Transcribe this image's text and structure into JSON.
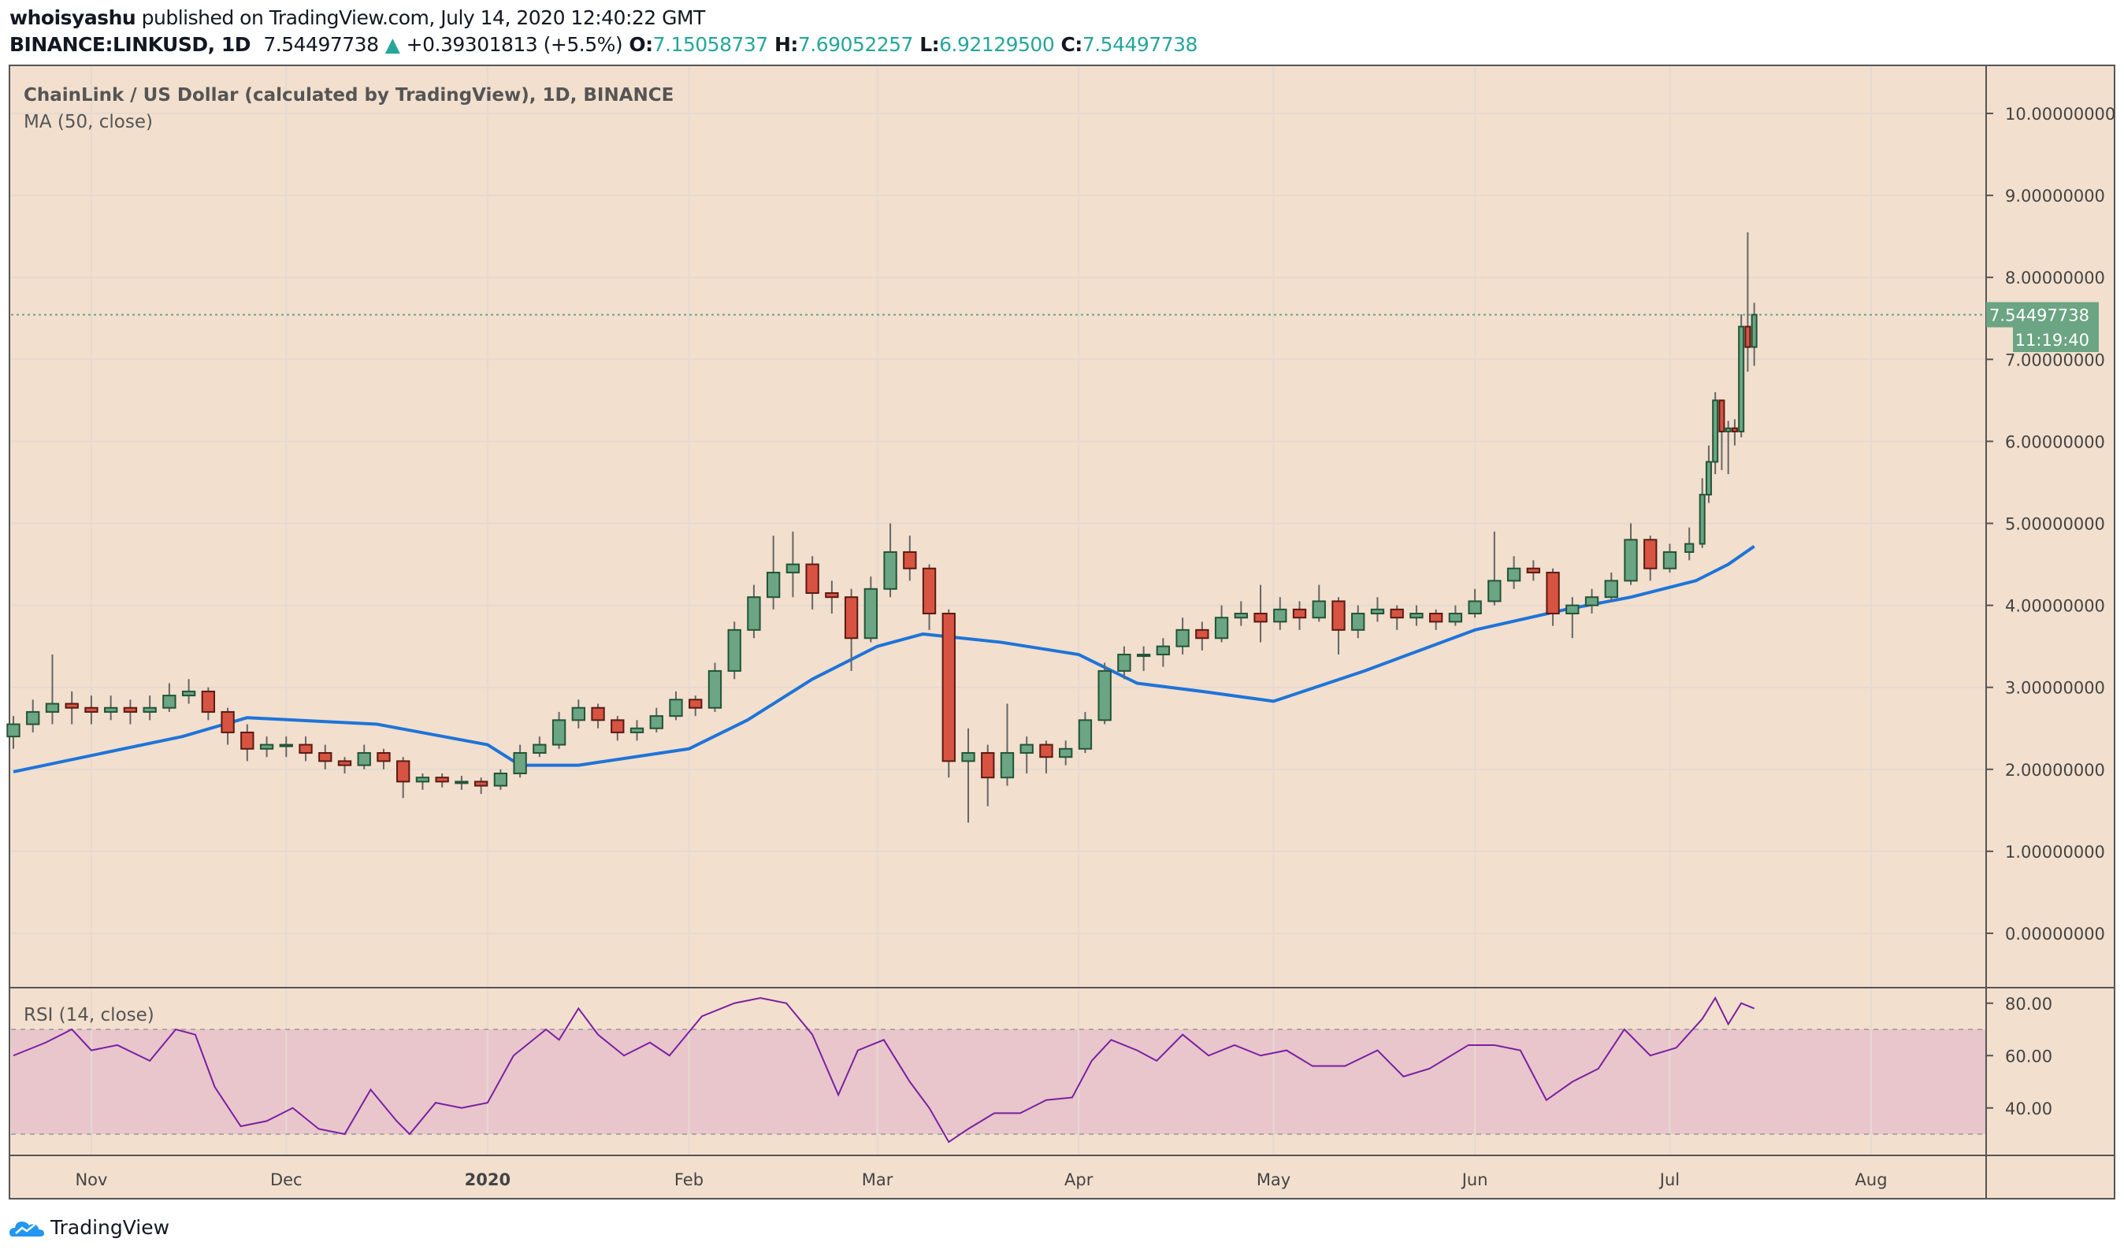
{
  "header": {
    "author": "whoisyashu",
    "published": "published on TradingView.com, July 14, 2020 12:40:22 GMT",
    "symbol": "BINANCE:LINKUSD, 1D",
    "last": "7.54497738",
    "change": "+0.39301813 (+5.5%)",
    "o_label": "O:",
    "o": "7.15058737",
    "h_label": "H:",
    "h": "7.69052257",
    "l_label": "L:",
    "l": "6.92129500",
    "c_label": "C:",
    "c": "7.54497738"
  },
  "footer": {
    "brand": "TradingView"
  },
  "colors": {
    "bg": "#f2dfce",
    "up": "#6ba583",
    "up_border": "#225437",
    "down": "#d75442",
    "down_border": "#5b1a13",
    "ma": "#1e74d8",
    "rsi": "#7b1fa2",
    "rsi_band": "#e8c6cc",
    "last_price": "#6ba583"
  },
  "chart_data": {
    "type": "candlestick",
    "title": "ChainLink / US Dollar (calculated by TradingView), 1D, BINANCE",
    "indicator_label": "MA (50, close)",
    "rsi_label": "RSI (14, close)",
    "last_price_label": "7.54497738",
    "countdown": "11:19:40",
    "ylim": [
      -0.7,
      10.3
    ],
    "yticks": [
      "0.00000000",
      "1.00000000",
      "2.00000000",
      "3.00000000",
      "4.00000000",
      "5.00000000",
      "6.00000000",
      "7.00000000",
      "8.00000000",
      "9.00000000",
      "10.00000000"
    ],
    "rsi_ylim": [
      24,
      86
    ],
    "rsi_yticks": [
      "40.00",
      "60.00",
      "80.00"
    ],
    "rsi_band": [
      30,
      70
    ],
    "xticks": [
      [
        "2019-11-01",
        "Nov"
      ],
      [
        "2019-12-01",
        "Dec"
      ],
      [
        "2020-01-01",
        "2020"
      ],
      [
        "2020-02-01",
        "Feb"
      ],
      [
        "2020-03-01",
        "Mar"
      ],
      [
        "2020-04-01",
        "Apr"
      ],
      [
        "2020-05-01",
        "May"
      ],
      [
        "2020-06-01",
        "Jun"
      ],
      [
        "2020-07-01",
        "Jul"
      ],
      [
        "2020-08-01",
        "Aug"
      ]
    ],
    "candles": [
      [
        "2019-10-20",
        2.4,
        2.65,
        2.25,
        2.55
      ],
      [
        "2019-10-23",
        2.55,
        2.85,
        2.45,
        2.7
      ],
      [
        "2019-10-26",
        2.7,
        3.4,
        2.55,
        2.8
      ],
      [
        "2019-10-29",
        2.8,
        2.95,
        2.55,
        2.75
      ],
      [
        "2019-11-01",
        2.75,
        2.9,
        2.55,
        2.7
      ],
      [
        "2019-11-04",
        2.7,
        2.9,
        2.6,
        2.75
      ],
      [
        "2019-11-07",
        2.75,
        2.85,
        2.55,
        2.7
      ],
      [
        "2019-11-10",
        2.7,
        2.9,
        2.6,
        2.75
      ],
      [
        "2019-11-13",
        2.75,
        3.05,
        2.7,
        2.9
      ],
      [
        "2019-11-16",
        2.9,
        3.1,
        2.8,
        2.95
      ],
      [
        "2019-11-19",
        2.95,
        3.0,
        2.6,
        2.7
      ],
      [
        "2019-11-22",
        2.7,
        2.75,
        2.3,
        2.45
      ],
      [
        "2019-11-25",
        2.45,
        2.55,
        2.1,
        2.25
      ],
      [
        "2019-11-28",
        2.25,
        2.4,
        2.15,
        2.3
      ],
      [
        "2019-12-01",
        2.3,
        2.4,
        2.15,
        2.3
      ],
      [
        "2019-12-04",
        2.3,
        2.4,
        2.1,
        2.2
      ],
      [
        "2019-12-07",
        2.2,
        2.3,
        2.0,
        2.1
      ],
      [
        "2019-12-10",
        2.1,
        2.15,
        1.95,
        2.05
      ],
      [
        "2019-12-13",
        2.05,
        2.3,
        2.0,
        2.2
      ],
      [
        "2019-12-16",
        2.2,
        2.25,
        2.0,
        2.1
      ],
      [
        "2019-12-19",
        2.1,
        2.15,
        1.65,
        1.85
      ],
      [
        "2019-12-22",
        1.85,
        1.95,
        1.75,
        1.9
      ],
      [
        "2019-12-25",
        1.9,
        1.95,
        1.78,
        1.85
      ],
      [
        "2019-12-28",
        1.85,
        1.92,
        1.75,
        1.85
      ],
      [
        "2019-12-31",
        1.85,
        1.9,
        1.7,
        1.8
      ],
      [
        "2020-01-03",
        1.8,
        2.0,
        1.75,
        1.95
      ],
      [
        "2020-01-06",
        1.95,
        2.3,
        1.9,
        2.2
      ],
      [
        "2020-01-09",
        2.2,
        2.4,
        2.15,
        2.3
      ],
      [
        "2020-01-12",
        2.3,
        2.7,
        2.25,
        2.6
      ],
      [
        "2020-01-15",
        2.6,
        2.85,
        2.5,
        2.75
      ],
      [
        "2020-01-18",
        2.75,
        2.8,
        2.5,
        2.6
      ],
      [
        "2020-01-21",
        2.6,
        2.65,
        2.35,
        2.45
      ],
      [
        "2020-01-24",
        2.45,
        2.6,
        2.35,
        2.5
      ],
      [
        "2020-01-27",
        2.5,
        2.75,
        2.45,
        2.65
      ],
      [
        "2020-01-30",
        2.65,
        2.95,
        2.6,
        2.85
      ],
      [
        "2020-02-02",
        2.85,
        2.9,
        2.65,
        2.75
      ],
      [
        "2020-02-05",
        2.75,
        3.3,
        2.7,
        3.2
      ],
      [
        "2020-02-08",
        3.2,
        3.8,
        3.1,
        3.7
      ],
      [
        "2020-02-11",
        3.7,
        4.25,
        3.6,
        4.1
      ],
      [
        "2020-02-14",
        4.1,
        4.85,
        3.95,
        4.4
      ],
      [
        "2020-02-17",
        4.4,
        4.9,
        4.1,
        4.5
      ],
      [
        "2020-02-20",
        4.5,
        4.6,
        3.95,
        4.15
      ],
      [
        "2020-02-23",
        4.15,
        4.3,
        3.9,
        4.1
      ],
      [
        "2020-02-26",
        4.1,
        4.2,
        3.2,
        3.6
      ],
      [
        "2020-02-29",
        3.6,
        4.35,
        3.55,
        4.2
      ],
      [
        "2020-03-03",
        4.2,
        5.0,
        4.1,
        4.65
      ],
      [
        "2020-03-06",
        4.65,
        4.85,
        4.3,
        4.45
      ],
      [
        "2020-03-09",
        4.45,
        4.5,
        3.7,
        3.9
      ],
      [
        "2020-03-12",
        3.9,
        3.95,
        1.9,
        2.1
      ],
      [
        "2020-03-15",
        2.1,
        2.5,
        1.35,
        2.2
      ],
      [
        "2020-03-18",
        2.2,
        2.3,
        1.55,
        1.9
      ],
      [
        "2020-03-21",
        1.9,
        2.8,
        1.8,
        2.2
      ],
      [
        "2020-03-24",
        2.2,
        2.4,
        1.95,
        2.3
      ],
      [
        "2020-03-27",
        2.3,
        2.35,
        1.95,
        2.15
      ],
      [
        "2020-03-30",
        2.15,
        2.35,
        2.05,
        2.25
      ],
      [
        "2020-04-02",
        2.25,
        2.7,
        2.2,
        2.6
      ],
      [
        "2020-04-05",
        2.6,
        3.3,
        2.55,
        3.2
      ],
      [
        "2020-04-08",
        3.2,
        3.5,
        3.1,
        3.4
      ],
      [
        "2020-04-11",
        3.4,
        3.5,
        3.2,
        3.4
      ],
      [
        "2020-04-14",
        3.4,
        3.6,
        3.25,
        3.5
      ],
      [
        "2020-04-17",
        3.5,
        3.85,
        3.4,
        3.7
      ],
      [
        "2020-04-20",
        3.7,
        3.8,
        3.45,
        3.6
      ],
      [
        "2020-04-23",
        3.6,
        4.0,
        3.55,
        3.85
      ],
      [
        "2020-04-26",
        3.85,
        4.05,
        3.75,
        3.9
      ],
      [
        "2020-04-29",
        3.9,
        4.25,
        3.55,
        3.8
      ],
      [
        "2020-05-02",
        3.8,
        4.1,
        3.7,
        3.95
      ],
      [
        "2020-05-05",
        3.95,
        4.05,
        3.7,
        3.85
      ],
      [
        "2020-05-08",
        3.85,
        4.25,
        3.8,
        4.05
      ],
      [
        "2020-05-11",
        4.05,
        4.1,
        3.4,
        3.7
      ],
      [
        "2020-05-14",
        3.7,
        4.0,
        3.6,
        3.9
      ],
      [
        "2020-05-17",
        3.9,
        4.1,
        3.8,
        3.95
      ],
      [
        "2020-05-20",
        3.95,
        4.0,
        3.7,
        3.85
      ],
      [
        "2020-05-23",
        3.85,
        4.0,
        3.75,
        3.9
      ],
      [
        "2020-05-26",
        3.9,
        3.95,
        3.7,
        3.8
      ],
      [
        "2020-05-29",
        3.8,
        4.0,
        3.75,
        3.9
      ],
      [
        "2020-06-01",
        3.9,
        4.2,
        3.85,
        4.05
      ],
      [
        "2020-06-04",
        4.05,
        4.9,
        4.0,
        4.3
      ],
      [
        "2020-06-07",
        4.3,
        4.6,
        4.2,
        4.45
      ],
      [
        "2020-06-10",
        4.45,
        4.55,
        4.3,
        4.4
      ],
      [
        "2020-06-13",
        4.4,
        4.45,
        3.75,
        3.9
      ],
      [
        "2020-06-16",
        3.9,
        4.1,
        3.6,
        4.0
      ],
      [
        "2020-06-19",
        4.0,
        4.2,
        3.9,
        4.1
      ],
      [
        "2020-06-22",
        4.1,
        4.4,
        4.05,
        4.3
      ],
      [
        "2020-06-25",
        4.3,
        5.0,
        4.25,
        4.8
      ],
      [
        "2020-06-28",
        4.8,
        4.85,
        4.3,
        4.45
      ],
      [
        "2020-07-01",
        4.45,
        4.75,
        4.4,
        4.65
      ],
      [
        "2020-07-04",
        4.65,
        4.95,
        4.55,
        4.75
      ],
      [
        "2020-07-06",
        4.75,
        5.55,
        4.7,
        5.35
      ],
      [
        "2020-07-07",
        5.35,
        5.95,
        5.25,
        5.75
      ],
      [
        "2020-07-08",
        5.75,
        6.6,
        5.6,
        6.5
      ],
      [
        "2020-07-09",
        6.5,
        6.5,
        5.65,
        6.12
      ],
      [
        "2020-07-10",
        6.12,
        6.25,
        5.6,
        6.16
      ],
      [
        "2020-07-11",
        6.16,
        6.27,
        5.95,
        6.12
      ],
      [
        "2020-07-12",
        6.12,
        7.55,
        6.05,
        7.4
      ],
      [
        "2020-07-13",
        7.4,
        8.55,
        6.85,
        7.15
      ],
      [
        "2020-07-14",
        7.15058737,
        7.69052257,
        6.921295,
        7.54497738
      ]
    ],
    "ma50": [
      [
        "2019-10-20",
        1.97
      ],
      [
        "2019-11-15",
        2.4
      ],
      [
        "2019-11-25",
        2.63
      ],
      [
        "2019-12-15",
        2.55
      ],
      [
        "2020-01-01",
        2.3
      ],
      [
        "2020-01-06",
        2.05
      ],
      [
        "2020-01-15",
        2.05
      ],
      [
        "2020-02-01",
        2.25
      ],
      [
        "2020-02-10",
        2.6
      ],
      [
        "2020-02-20",
        3.1
      ],
      [
        "2020-03-01",
        3.5
      ],
      [
        "2020-03-08",
        3.65
      ],
      [
        "2020-03-20",
        3.55
      ],
      [
        "2020-04-01",
        3.4
      ],
      [
        "2020-04-10",
        3.05
      ],
      [
        "2020-04-20",
        2.95
      ],
      [
        "2020-05-01",
        2.83
      ],
      [
        "2020-05-15",
        3.2
      ],
      [
        "2020-06-01",
        3.7
      ],
      [
        "2020-06-15",
        3.95
      ],
      [
        "2020-06-25",
        4.1
      ],
      [
        "2020-07-05",
        4.3
      ],
      [
        "2020-07-10",
        4.5
      ],
      [
        "2020-07-14",
        4.72
      ]
    ],
    "rsi": [
      [
        "2019-10-20",
        60
      ],
      [
        "2019-10-25",
        65
      ],
      [
        "2019-10-29",
        70
      ],
      [
        "2019-11-01",
        62
      ],
      [
        "2019-11-05",
        64
      ],
      [
        "2019-11-10",
        58
      ],
      [
        "2019-11-14",
        70
      ],
      [
        "2019-11-17",
        68
      ],
      [
        "2019-11-20",
        48
      ],
      [
        "2019-11-24",
        33
      ],
      [
        "2019-11-28",
        35
      ],
      [
        "2019-12-02",
        40
      ],
      [
        "2019-12-06",
        32
      ],
      [
        "2019-12-10",
        30
      ],
      [
        "2019-12-14",
        47
      ],
      [
        "2019-12-18",
        35
      ],
      [
        "2019-12-20",
        30
      ],
      [
        "2019-12-24",
        42
      ],
      [
        "2019-12-28",
        40
      ],
      [
        "2020-01-01",
        42
      ],
      [
        "2020-01-05",
        60
      ],
      [
        "2020-01-10",
        70
      ],
      [
        "2020-01-12",
        66
      ],
      [
        "2020-01-15",
        78
      ],
      [
        "2020-01-18",
        68
      ],
      [
        "2020-01-22",
        60
      ],
      [
        "2020-01-26",
        65
      ],
      [
        "2020-01-29",
        60
      ],
      [
        "2020-02-03",
        75
      ],
      [
        "2020-02-08",
        80
      ],
      [
        "2020-02-12",
        82
      ],
      [
        "2020-02-16",
        80
      ],
      [
        "2020-02-20",
        68
      ],
      [
        "2020-02-24",
        45
      ],
      [
        "2020-02-27",
        62
      ],
      [
        "2020-03-02",
        66
      ],
      [
        "2020-03-06",
        50
      ],
      [
        "2020-03-09",
        40
      ],
      [
        "2020-03-12",
        27
      ],
      [
        "2020-03-15",
        32
      ],
      [
        "2020-03-19",
        38
      ],
      [
        "2020-03-23",
        38
      ],
      [
        "2020-03-27",
        43
      ],
      [
        "2020-03-31",
        44
      ],
      [
        "2020-04-03",
        58
      ],
      [
        "2020-04-06",
        66
      ],
      [
        "2020-04-10",
        62
      ],
      [
        "2020-04-13",
        58
      ],
      [
        "2020-04-17",
        68
      ],
      [
        "2020-04-21",
        60
      ],
      [
        "2020-04-25",
        64
      ],
      [
        "2020-04-29",
        60
      ],
      [
        "2020-05-03",
        62
      ],
      [
        "2020-05-07",
        56
      ],
      [
        "2020-05-12",
        56
      ],
      [
        "2020-05-17",
        62
      ],
      [
        "2020-05-21",
        52
      ],
      [
        "2020-05-25",
        55
      ],
      [
        "2020-05-31",
        64
      ],
      [
        "2020-06-04",
        64
      ],
      [
        "2020-06-08",
        62
      ],
      [
        "2020-06-12",
        43
      ],
      [
        "2020-06-16",
        50
      ],
      [
        "2020-06-20",
        55
      ],
      [
        "2020-06-24",
        70
      ],
      [
        "2020-06-28",
        60
      ],
      [
        "2020-07-02",
        63
      ],
      [
        "2020-07-06",
        74
      ],
      [
        "2020-07-08",
        82
      ],
      [
        "2020-07-10",
        72
      ],
      [
        "2020-07-12",
        80
      ],
      [
        "2020-07-14",
        78
      ]
    ]
  }
}
